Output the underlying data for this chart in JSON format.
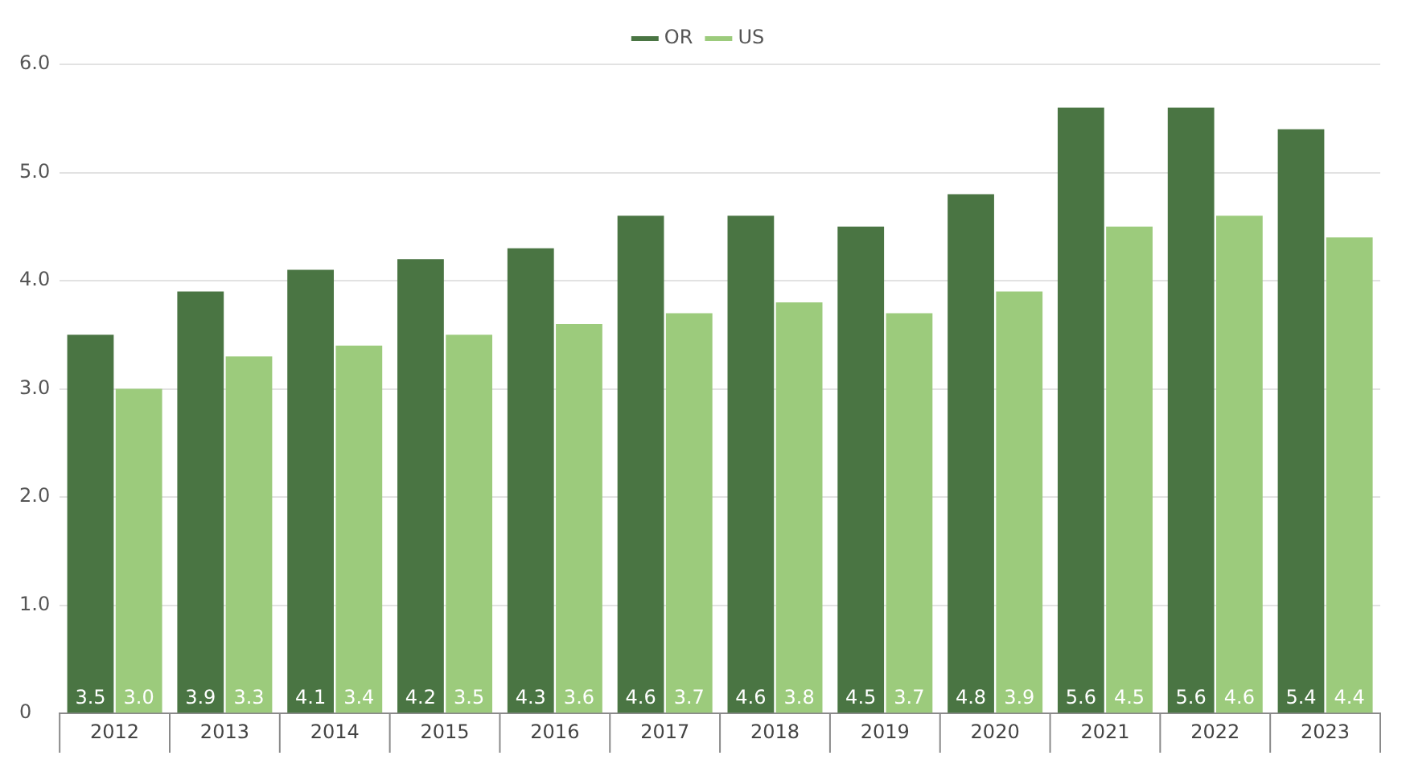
{
  "chart_data": {
    "type": "bar",
    "categories": [
      "2012",
      "2013",
      "2014",
      "2015",
      "2016",
      "2017",
      "2018",
      "2019",
      "2020",
      "2021",
      "2022",
      "2023"
    ],
    "series": [
      {
        "name": "OR",
        "color": "#4a7543",
        "values": [
          3.5,
          3.9,
          4.1,
          4.2,
          4.3,
          4.6,
          4.6,
          4.5,
          4.8,
          5.6,
          5.6,
          5.4
        ],
        "value_labels": [
          "3.5",
          "3.9",
          "4.1",
          "4.2",
          "4.3",
          "4.6",
          "4.6",
          "4.5",
          "4.8",
          "5.6",
          "5.6",
          "5.4"
        ]
      },
      {
        "name": "US",
        "color": "#9ccb7c",
        "values": [
          3.0,
          3.3,
          3.4,
          3.5,
          3.6,
          3.7,
          3.8,
          3.7,
          3.9,
          4.5,
          4.6,
          4.4
        ],
        "value_labels": [
          "3.0",
          "3.3",
          "3.4",
          "3.5",
          "3.6",
          "3.7",
          "3.8",
          "3.7",
          "3.9",
          "4.5",
          "4.6",
          "4.4"
        ]
      }
    ],
    "ylim": [
      0,
      6
    ],
    "yticks": [
      0,
      {
        "value": 1,
        "label": "1.0"
      },
      {
        "value": 2,
        "label": "2.0"
      },
      {
        "value": 3,
        "label": "3.0"
      },
      {
        "value": 4,
        "label": "4.0"
      },
      {
        "value": 5,
        "label": "5.0"
      },
      {
        "value": 6,
        "label": "6.0"
      }
    ],
    "grid": "y",
    "legend": "top"
  }
}
